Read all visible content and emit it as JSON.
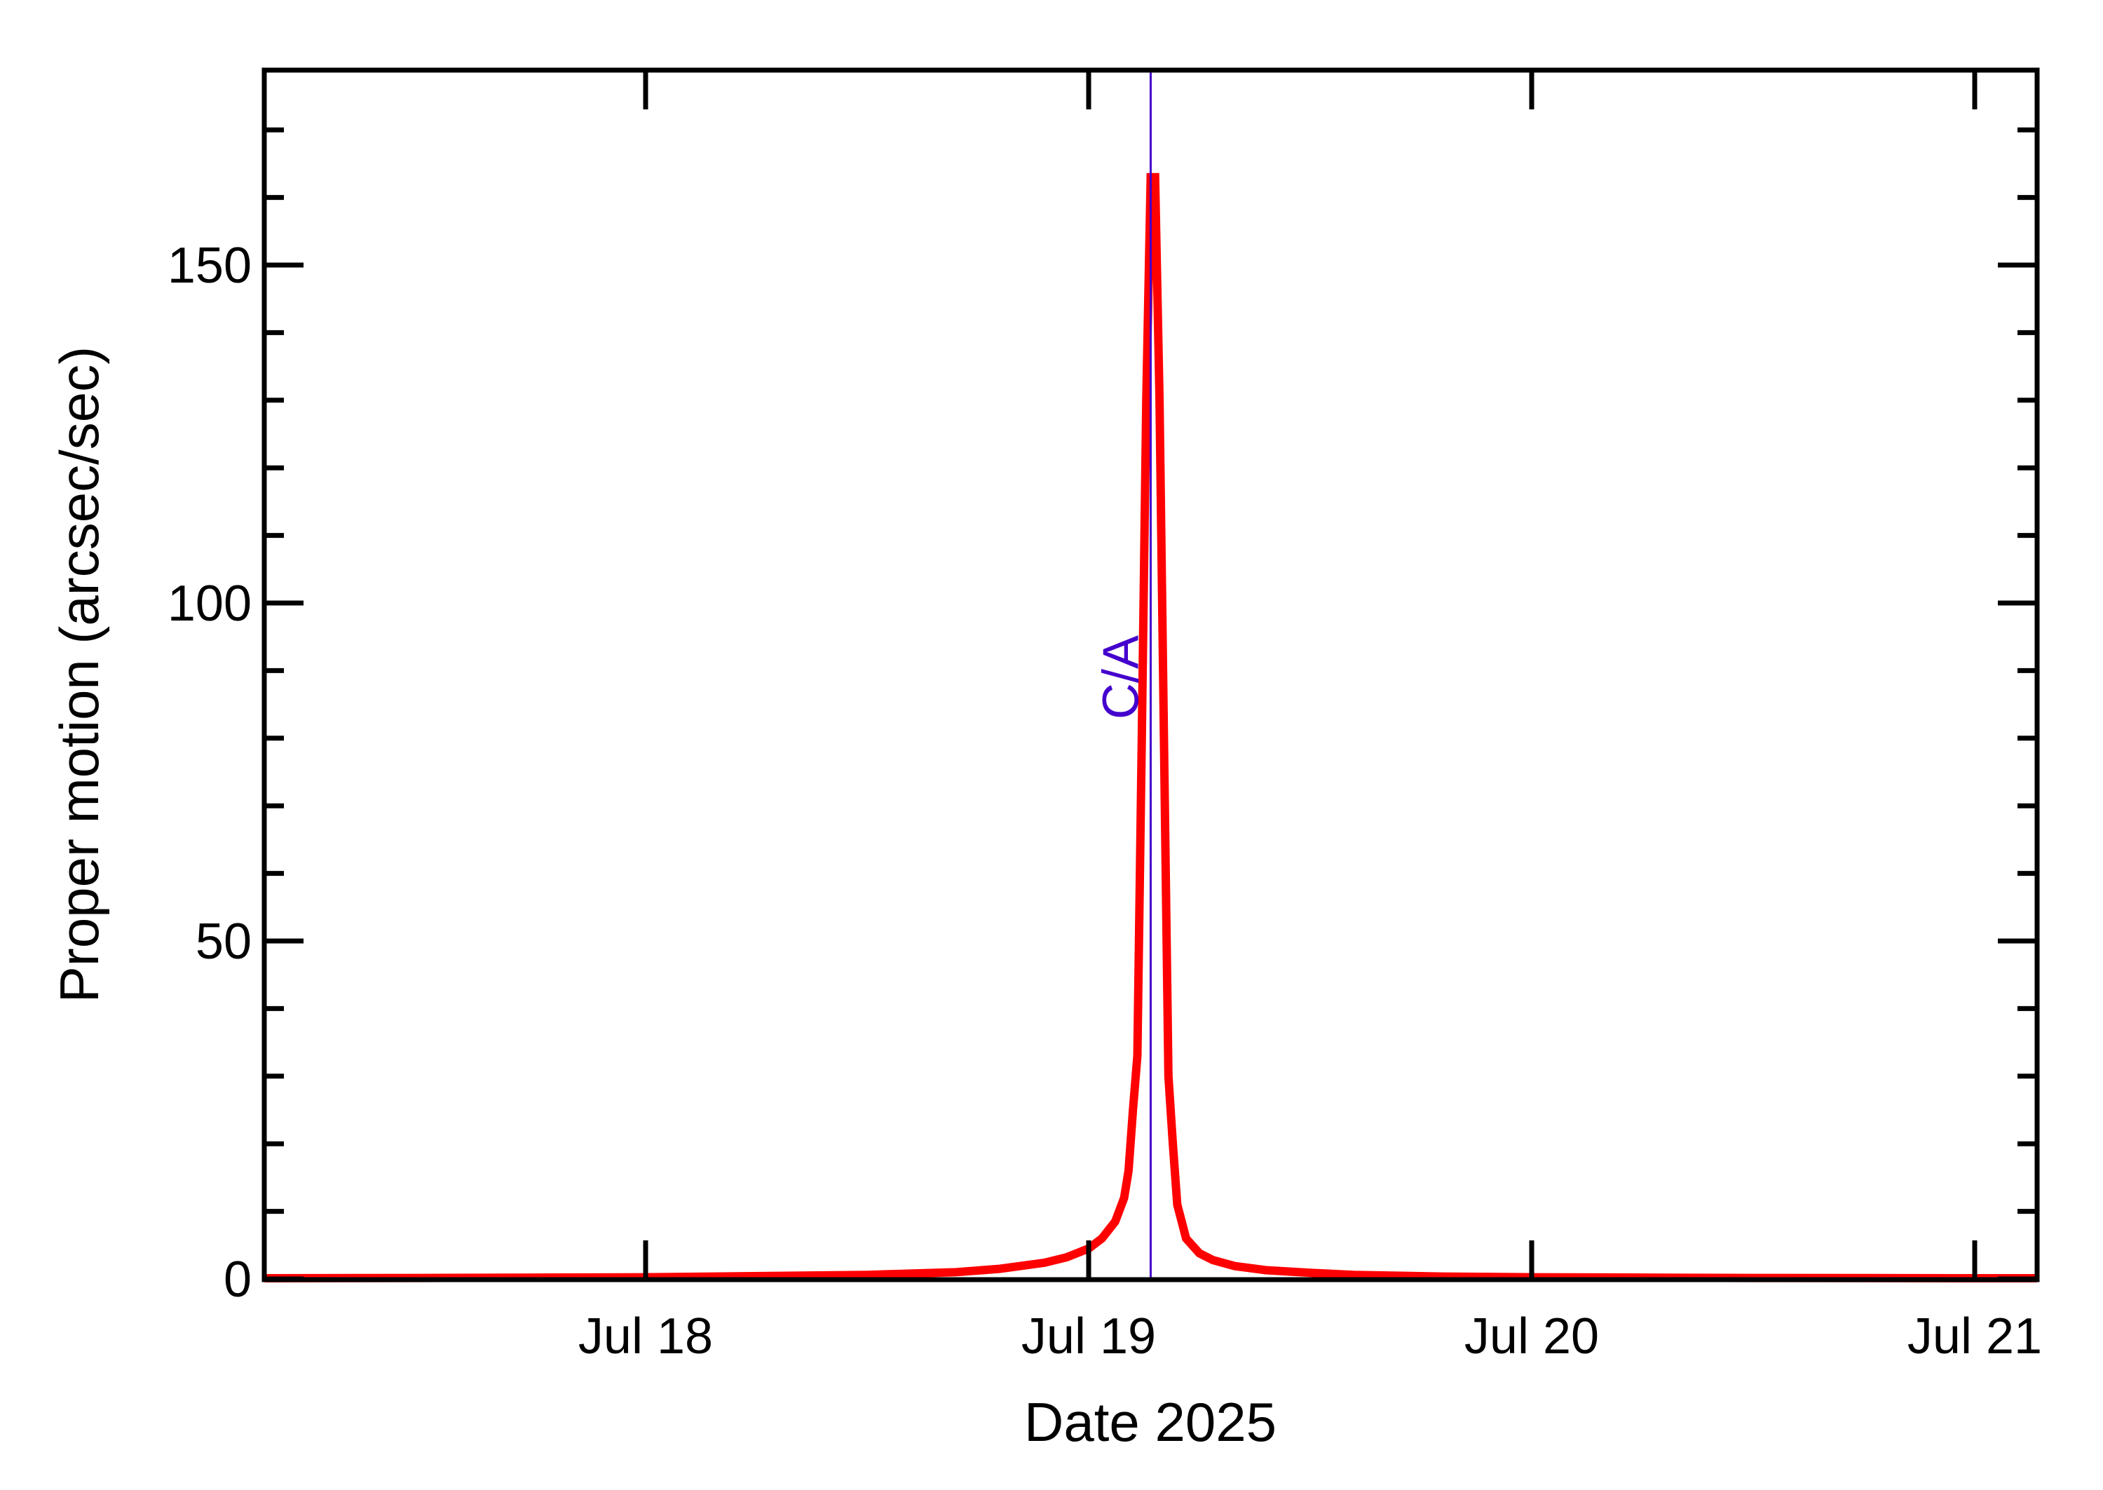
{
  "chart_data": {
    "type": "line",
    "title": "",
    "xlabel": "Date 2025",
    "ylabel": "Proper motion (arcsec/sec)",
    "x_unit": "days since Jul 17 00:00 (2025)",
    "xlim": [
      0.14,
      4.14
    ],
    "ylim": [
      0,
      180
    ],
    "grid": false,
    "legend": "none",
    "x_ticks": [
      {
        "value": 1,
        "label": "Jul 18"
      },
      {
        "value": 2,
        "label": "Jul 19"
      },
      {
        "value": 3,
        "label": "Jul 20"
      },
      {
        "value": 4,
        "label": "Jul 21"
      }
    ],
    "y_ticks": [
      {
        "value": 0,
        "label": "0"
      },
      {
        "value": 50,
        "label": "50"
      },
      {
        "value": 100,
        "label": "100"
      },
      {
        "value": 150,
        "label": "150"
      }
    ],
    "y_minor_step": 10,
    "annotations": [
      {
        "type": "vline",
        "x": 2.14,
        "label": "C/A",
        "color": "#4400cc"
      }
    ],
    "series": [
      {
        "name": "Proper motion",
        "color": "#ff0000",
        "x": [
          0.14,
          0.5,
          1.0,
          1.5,
          1.7,
          1.8,
          1.9,
          1.95,
          2.0,
          2.03,
          2.06,
          2.08,
          2.09,
          2.1,
          2.11,
          2.12,
          2.13,
          2.14,
          2.15,
          2.16,
          2.17,
          2.18,
          2.19,
          2.2,
          2.22,
          2.25,
          2.28,
          2.33,
          2.4,
          2.5,
          2.6,
          2.8,
          3.0,
          3.5,
          4.0,
          4.14
        ],
        "y": [
          0.1,
          0.15,
          0.25,
          0.6,
          1.0,
          1.5,
          2.4,
          3.2,
          4.5,
          6.0,
          8.5,
          12,
          16,
          25,
          33,
          80,
          130,
          163,
          163,
          130,
          80,
          30,
          20,
          11,
          6.0,
          3.8,
          2.8,
          1.9,
          1.3,
          0.9,
          0.6,
          0.35,
          0.25,
          0.15,
          0.1,
          0.1
        ]
      }
    ]
  }
}
